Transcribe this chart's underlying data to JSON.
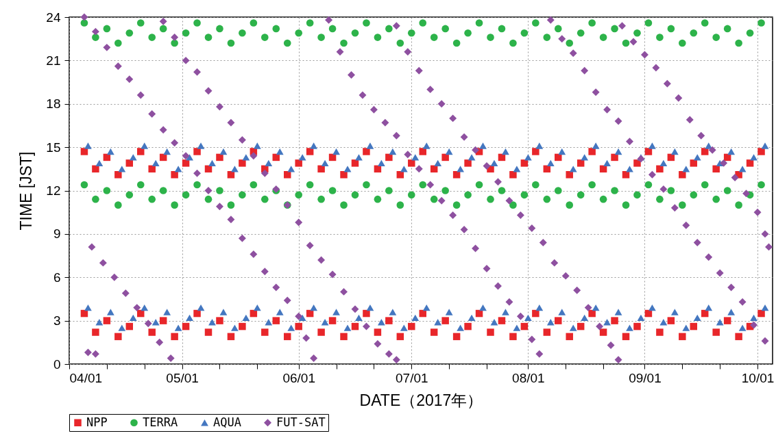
{
  "chart_data": {
    "type": "scatter",
    "xlabel": "DATE（2017年）",
    "ylabel": "TIME [JST]",
    "xlim": [
      "2017-04-01",
      "2017-10-05"
    ],
    "ylim": [
      0,
      24
    ],
    "xticks": [
      {
        "value": "2017-04-01",
        "label": "04/01"
      },
      {
        "value": "2017-04-11",
        "label": null
      },
      {
        "value": "2017-04-21",
        "label": null
      },
      {
        "value": "2017-05-01",
        "label": "05/01"
      },
      {
        "value": "2017-05-11",
        "label": null
      },
      {
        "value": "2017-05-21",
        "label": null
      },
      {
        "value": "2017-06-01",
        "label": "06/01"
      },
      {
        "value": "2017-06-11",
        "label": null
      },
      {
        "value": "2017-06-21",
        "label": null
      },
      {
        "value": "2017-07-01",
        "label": "07/01"
      },
      {
        "value": "2017-07-11",
        "label": null
      },
      {
        "value": "2017-07-21",
        "label": null
      },
      {
        "value": "2017-08-01",
        "label": "08/01"
      },
      {
        "value": "2017-08-11",
        "label": null
      },
      {
        "value": "2017-08-21",
        "label": null
      },
      {
        "value": "2017-09-01",
        "label": "09/01"
      },
      {
        "value": "2017-09-11",
        "label": null
      },
      {
        "value": "2017-09-21",
        "label": null
      },
      {
        "value": "2017-10-01",
        "label": "10/01"
      }
    ],
    "yticks": [
      0,
      3,
      6,
      9,
      12,
      15,
      18,
      21,
      24
    ],
    "grid": true,
    "legend": "bottom",
    "series": [
      {
        "name": "NPP",
        "color": "#e8262a",
        "marker": "square",
        "x": [
          "2017-04-05",
          "2017-04-08",
          "2017-04-11",
          "2017-04-14",
          "2017-04-17",
          "2017-04-20",
          "2017-04-23",
          "2017-04-26",
          "2017-04-29",
          "2017-05-02",
          "2017-05-05",
          "2017-05-08",
          "2017-05-11",
          "2017-05-14",
          "2017-05-17",
          "2017-05-20",
          "2017-05-23",
          "2017-05-26",
          "2017-05-29",
          "2017-06-01",
          "2017-06-04",
          "2017-06-07",
          "2017-06-10",
          "2017-06-13",
          "2017-06-16",
          "2017-06-19",
          "2017-06-22",
          "2017-06-25",
          "2017-06-28",
          "2017-07-01",
          "2017-07-04",
          "2017-07-07",
          "2017-07-10",
          "2017-07-13",
          "2017-07-16",
          "2017-07-19",
          "2017-07-22",
          "2017-07-25",
          "2017-07-28",
          "2017-07-31",
          "2017-08-03",
          "2017-08-06",
          "2017-08-09",
          "2017-08-12",
          "2017-08-15",
          "2017-08-18",
          "2017-08-21",
          "2017-08-24",
          "2017-08-27",
          "2017-08-30",
          "2017-09-02",
          "2017-09-05",
          "2017-09-08",
          "2017-09-11",
          "2017-09-14",
          "2017-09-17",
          "2017-09-20",
          "2017-09-23",
          "2017-09-26",
          "2017-09-29",
          "2017-10-02",
          "2017-04-05",
          "2017-04-08",
          "2017-04-11",
          "2017-04-14",
          "2017-04-17",
          "2017-04-20",
          "2017-04-23",
          "2017-04-26",
          "2017-04-29",
          "2017-05-02",
          "2017-05-05",
          "2017-05-08",
          "2017-05-11",
          "2017-05-14",
          "2017-05-17",
          "2017-05-20",
          "2017-05-23",
          "2017-05-26",
          "2017-05-29",
          "2017-06-01",
          "2017-06-04",
          "2017-06-07",
          "2017-06-10",
          "2017-06-13",
          "2017-06-16",
          "2017-06-19",
          "2017-06-22",
          "2017-06-25",
          "2017-06-28",
          "2017-07-01",
          "2017-07-04",
          "2017-07-07",
          "2017-07-10",
          "2017-07-13",
          "2017-07-16",
          "2017-07-19",
          "2017-07-22",
          "2017-07-25",
          "2017-07-28",
          "2017-07-31",
          "2017-08-03",
          "2017-08-06",
          "2017-08-09",
          "2017-08-12",
          "2017-08-15",
          "2017-08-18",
          "2017-08-21",
          "2017-08-24",
          "2017-08-27",
          "2017-08-30",
          "2017-09-02",
          "2017-09-05",
          "2017-09-08",
          "2017-09-11",
          "2017-09-14",
          "2017-09-17",
          "2017-09-20",
          "2017-09-23",
          "2017-09-26",
          "2017-09-29",
          "2017-10-02"
        ],
        "values": [
          14.7,
          13.5,
          14.3,
          13.1,
          13.9,
          14.7,
          13.5,
          14.3,
          13.1,
          13.9,
          14.7,
          13.5,
          14.3,
          13.1,
          13.9,
          14.7,
          13.5,
          14.3,
          13.1,
          13.9,
          14.7,
          13.5,
          14.3,
          13.1,
          13.9,
          14.7,
          13.5,
          14.3,
          13.1,
          13.9,
          14.7,
          13.5,
          14.3,
          13.1,
          13.9,
          14.7,
          13.5,
          14.3,
          13.1,
          13.9,
          14.7,
          13.5,
          14.3,
          13.1,
          13.9,
          14.7,
          13.5,
          14.3,
          13.1,
          13.9,
          14.7,
          13.5,
          14.3,
          13.1,
          13.9,
          14.7,
          13.5,
          14.3,
          13.1,
          13.9,
          14.7,
          3.5,
          2.2,
          3.0,
          1.9,
          2.6,
          3.5,
          2.2,
          3.0,
          1.9,
          2.6,
          3.5,
          2.2,
          3.0,
          1.9,
          2.6,
          3.5,
          2.2,
          3.0,
          1.9,
          2.6,
          3.5,
          2.2,
          3.0,
          1.9,
          2.6,
          3.5,
          2.2,
          3.0,
          1.9,
          2.6,
          3.5,
          2.2,
          3.0,
          1.9,
          2.6,
          3.5,
          2.2,
          3.0,
          1.9,
          2.6,
          3.5,
          2.2,
          3.0,
          1.9,
          2.6,
          3.5,
          2.2,
          3.0,
          1.9,
          2.6,
          3.5,
          2.2,
          3.0,
          1.9,
          2.6,
          3.5,
          2.2,
          3.0,
          1.9,
          2.6,
          3.5
        ]
      },
      {
        "name": "TERRA",
        "color": "#2db34a",
        "marker": "circle",
        "x": [
          "2017-04-05",
          "2017-04-08",
          "2017-04-11",
          "2017-04-14",
          "2017-04-17",
          "2017-04-20",
          "2017-04-23",
          "2017-04-26",
          "2017-04-29",
          "2017-05-02",
          "2017-05-05",
          "2017-05-08",
          "2017-05-11",
          "2017-05-14",
          "2017-05-17",
          "2017-05-20",
          "2017-05-23",
          "2017-05-26",
          "2017-05-29",
          "2017-06-01",
          "2017-06-04",
          "2017-06-07",
          "2017-06-10",
          "2017-06-13",
          "2017-06-16",
          "2017-06-19",
          "2017-06-22",
          "2017-06-25",
          "2017-06-28",
          "2017-07-01",
          "2017-07-04",
          "2017-07-07",
          "2017-07-10",
          "2017-07-13",
          "2017-07-16",
          "2017-07-19",
          "2017-07-22",
          "2017-07-25",
          "2017-07-28",
          "2017-07-31",
          "2017-08-03",
          "2017-08-06",
          "2017-08-09",
          "2017-08-12",
          "2017-08-15",
          "2017-08-18",
          "2017-08-21",
          "2017-08-24",
          "2017-08-27",
          "2017-08-30",
          "2017-09-02",
          "2017-09-05",
          "2017-09-08",
          "2017-09-11",
          "2017-09-14",
          "2017-09-17",
          "2017-09-20",
          "2017-09-23",
          "2017-09-26",
          "2017-09-29",
          "2017-10-02",
          "2017-04-05",
          "2017-04-08",
          "2017-04-11",
          "2017-04-14",
          "2017-04-17",
          "2017-04-20",
          "2017-04-23",
          "2017-04-26",
          "2017-04-29",
          "2017-05-02",
          "2017-05-05",
          "2017-05-08",
          "2017-05-11",
          "2017-05-14",
          "2017-05-17",
          "2017-05-20",
          "2017-05-23",
          "2017-05-26",
          "2017-05-29",
          "2017-06-01",
          "2017-06-04",
          "2017-06-07",
          "2017-06-10",
          "2017-06-13",
          "2017-06-16",
          "2017-06-19",
          "2017-06-22",
          "2017-06-25",
          "2017-06-28",
          "2017-07-01",
          "2017-07-04",
          "2017-07-07",
          "2017-07-10",
          "2017-07-13",
          "2017-07-16",
          "2017-07-19",
          "2017-07-22",
          "2017-07-25",
          "2017-07-28",
          "2017-07-31",
          "2017-08-03",
          "2017-08-06",
          "2017-08-09",
          "2017-08-12",
          "2017-08-15",
          "2017-08-18",
          "2017-08-21",
          "2017-08-24",
          "2017-08-27",
          "2017-08-30",
          "2017-09-02",
          "2017-09-05",
          "2017-09-08",
          "2017-09-11",
          "2017-09-14",
          "2017-09-17",
          "2017-09-20",
          "2017-09-23",
          "2017-09-26",
          "2017-09-29",
          "2017-10-02"
        ],
        "values": [
          23.6,
          22.6,
          23.2,
          22.2,
          22.9,
          23.6,
          22.6,
          23.2,
          22.2,
          22.9,
          23.6,
          22.6,
          23.2,
          22.2,
          22.9,
          23.6,
          22.6,
          23.2,
          22.2,
          22.9,
          23.6,
          22.6,
          23.2,
          22.2,
          22.9,
          23.6,
          22.6,
          23.2,
          22.2,
          22.9,
          23.6,
          22.6,
          23.2,
          22.2,
          22.9,
          23.6,
          22.6,
          23.2,
          22.2,
          22.9,
          23.6,
          22.6,
          23.2,
          22.2,
          22.9,
          23.6,
          22.6,
          23.2,
          22.2,
          22.9,
          23.6,
          22.6,
          23.2,
          22.2,
          22.9,
          23.6,
          22.6,
          23.2,
          22.2,
          22.9,
          23.6,
          12.4,
          11.4,
          12.0,
          11.0,
          11.7,
          12.4,
          11.4,
          12.0,
          11.0,
          11.7,
          12.4,
          11.4,
          12.0,
          11.0,
          11.7,
          12.4,
          11.4,
          12.0,
          11.0,
          11.7,
          12.4,
          11.4,
          12.0,
          11.0,
          11.7,
          12.4,
          11.4,
          12.0,
          11.0,
          11.7,
          12.4,
          11.4,
          12.0,
          11.0,
          11.7,
          12.4,
          11.4,
          12.0,
          11.0,
          11.7,
          12.4,
          11.4,
          12.0,
          11.0,
          11.7,
          12.4,
          11.4,
          12.0,
          11.0,
          11.7,
          12.4,
          11.4,
          12.0,
          11.0,
          11.7,
          12.4,
          11.4,
          12.0,
          11.0,
          11.7,
          12.4
        ]
      },
      {
        "name": "AQUA",
        "color": "#4477c0",
        "marker": "triangle",
        "x": [
          "2017-04-06",
          "2017-04-09",
          "2017-04-12",
          "2017-04-15",
          "2017-04-18",
          "2017-04-21",
          "2017-04-24",
          "2017-04-27",
          "2017-04-30",
          "2017-05-03",
          "2017-05-06",
          "2017-05-09",
          "2017-05-12",
          "2017-05-15",
          "2017-05-18",
          "2017-05-21",
          "2017-05-24",
          "2017-05-27",
          "2017-05-30",
          "2017-06-02",
          "2017-06-05",
          "2017-06-08",
          "2017-06-11",
          "2017-06-14",
          "2017-06-17",
          "2017-06-20",
          "2017-06-23",
          "2017-06-26",
          "2017-06-29",
          "2017-07-02",
          "2017-07-05",
          "2017-07-08",
          "2017-07-11",
          "2017-07-14",
          "2017-07-17",
          "2017-07-20",
          "2017-07-23",
          "2017-07-26",
          "2017-07-29",
          "2017-08-01",
          "2017-08-04",
          "2017-08-07",
          "2017-08-10",
          "2017-08-13",
          "2017-08-16",
          "2017-08-19",
          "2017-08-22",
          "2017-08-25",
          "2017-08-28",
          "2017-08-31",
          "2017-09-03",
          "2017-09-06",
          "2017-09-09",
          "2017-09-12",
          "2017-09-15",
          "2017-09-18",
          "2017-09-21",
          "2017-09-24",
          "2017-09-27",
          "2017-09-30",
          "2017-10-03",
          "2017-04-06",
          "2017-04-09",
          "2017-04-12",
          "2017-04-15",
          "2017-04-18",
          "2017-04-21",
          "2017-04-24",
          "2017-04-27",
          "2017-04-30",
          "2017-05-03",
          "2017-05-06",
          "2017-05-09",
          "2017-05-12",
          "2017-05-15",
          "2017-05-18",
          "2017-05-21",
          "2017-05-24",
          "2017-05-27",
          "2017-05-30",
          "2017-06-02",
          "2017-06-05",
          "2017-06-08",
          "2017-06-11",
          "2017-06-14",
          "2017-06-17",
          "2017-06-20",
          "2017-06-23",
          "2017-06-26",
          "2017-06-29",
          "2017-07-02",
          "2017-07-05",
          "2017-07-08",
          "2017-07-11",
          "2017-07-14",
          "2017-07-17",
          "2017-07-20",
          "2017-07-23",
          "2017-07-26",
          "2017-07-29",
          "2017-08-01",
          "2017-08-04",
          "2017-08-07",
          "2017-08-10",
          "2017-08-13",
          "2017-08-16",
          "2017-08-19",
          "2017-08-22",
          "2017-08-25",
          "2017-08-28",
          "2017-08-31",
          "2017-09-03",
          "2017-09-06",
          "2017-09-09",
          "2017-09-12",
          "2017-09-15",
          "2017-09-18",
          "2017-09-21",
          "2017-09-24",
          "2017-09-27",
          "2017-09-30",
          "2017-10-03"
        ],
        "values": [
          15.1,
          13.9,
          14.7,
          13.5,
          14.3,
          15.1,
          13.9,
          14.7,
          13.5,
          14.3,
          15.1,
          13.9,
          14.7,
          13.5,
          14.3,
          15.1,
          13.9,
          14.7,
          13.5,
          14.3,
          15.1,
          13.9,
          14.7,
          13.5,
          14.3,
          15.1,
          13.9,
          14.7,
          13.5,
          14.3,
          15.1,
          13.9,
          14.7,
          13.5,
          14.3,
          15.1,
          13.9,
          14.7,
          13.5,
          14.3,
          15.1,
          13.9,
          14.7,
          13.5,
          14.3,
          15.1,
          13.9,
          14.7,
          13.5,
          14.3,
          15.1,
          13.9,
          14.7,
          13.5,
          14.3,
          15.1,
          13.9,
          14.7,
          13.5,
          14.3,
          15.1,
          3.9,
          2.9,
          3.6,
          2.5,
          3.2,
          3.9,
          2.9,
          3.6,
          2.5,
          3.2,
          3.9,
          2.9,
          3.6,
          2.5,
          3.2,
          3.9,
          2.9,
          3.6,
          2.5,
          3.2,
          3.9,
          2.9,
          3.6,
          2.5,
          3.2,
          3.9,
          2.9,
          3.6,
          2.5,
          3.2,
          3.9,
          2.9,
          3.6,
          2.5,
          3.2,
          3.9,
          2.9,
          3.6,
          2.5,
          3.2,
          3.9,
          2.9,
          3.6,
          2.5,
          3.2,
          3.9,
          2.9,
          3.6,
          2.5,
          3.2,
          3.9,
          2.9,
          3.6,
          2.5,
          3.2,
          3.9,
          2.9,
          3.6,
          2.5,
          3.2,
          3.9
        ]
      },
      {
        "name": "FUT-SAT",
        "color": "#8e50a0",
        "marker": "diamond",
        "x": [
          "2017-04-06",
          "2017-04-08",
          "2017-04-07",
          "2017-04-10",
          "2017-04-13",
          "2017-04-16",
          "2017-04-19",
          "2017-04-22",
          "2017-04-25",
          "2017-04-28",
          "2017-04-05",
          "2017-04-08",
          "2017-04-11",
          "2017-04-14",
          "2017-04-17",
          "2017-04-20",
          "2017-04-23",
          "2017-04-26",
          "2017-04-29",
          "2017-05-02",
          "2017-05-05",
          "2017-05-08",
          "2017-05-11",
          "2017-05-14",
          "2017-05-17",
          "2017-05-20",
          "2017-05-23",
          "2017-05-26",
          "2017-05-29",
          "2017-06-01",
          "2017-06-03",
          "2017-06-05",
          "2017-04-26",
          "2017-04-29",
          "2017-05-02",
          "2017-05-05",
          "2017-05-08",
          "2017-05-11",
          "2017-05-14",
          "2017-05-17",
          "2017-05-20",
          "2017-05-23",
          "2017-05-26",
          "2017-05-29",
          "2017-06-01",
          "2017-06-04",
          "2017-06-07",
          "2017-06-10",
          "2017-06-13",
          "2017-06-16",
          "2017-06-19",
          "2017-06-22",
          "2017-06-25",
          "2017-06-27",
          "2017-06-09",
          "2017-06-12",
          "2017-06-15",
          "2017-06-18",
          "2017-06-21",
          "2017-06-24",
          "2017-06-27",
          "2017-06-30",
          "2017-07-03",
          "2017-07-06",
          "2017-07-09",
          "2017-07-12",
          "2017-07-15",
          "2017-07-18",
          "2017-07-21",
          "2017-07-24",
          "2017-07-27",
          "2017-07-30",
          "2017-08-02",
          "2017-08-04",
          "2017-06-27",
          "2017-06-30",
          "2017-07-03",
          "2017-07-06",
          "2017-07-09",
          "2017-07-12",
          "2017-07-15",
          "2017-07-18",
          "2017-07-21",
          "2017-07-24",
          "2017-07-27",
          "2017-07-30",
          "2017-08-02",
          "2017-08-05",
          "2017-08-08",
          "2017-08-11",
          "2017-08-14",
          "2017-08-17",
          "2017-08-20",
          "2017-08-23",
          "2017-08-25",
          "2017-08-07",
          "2017-08-10",
          "2017-08-13",
          "2017-08-16",
          "2017-08-19",
          "2017-08-22",
          "2017-08-25",
          "2017-08-28",
          "2017-08-31",
          "2017-09-03",
          "2017-09-06",
          "2017-09-09",
          "2017-09-12",
          "2017-09-15",
          "2017-09-18",
          "2017-09-21",
          "2017-09-24",
          "2017-09-27",
          "2017-09-30",
          "2017-10-03",
          "2017-08-26",
          "2017-08-29",
          "2017-09-01",
          "2017-09-04",
          "2017-09-07",
          "2017-09-10",
          "2017-09-13",
          "2017-09-16",
          "2017-09-19",
          "2017-09-22",
          "2017-09-25",
          "2017-09-28",
          "2017-10-01",
          "2017-10-03",
          "2017-10-04"
        ],
        "values": [
          0.8,
          0.7,
          8.1,
          7.0,
          6.0,
          4.9,
          3.9,
          2.8,
          1.5,
          0.4,
          24.0,
          23.0,
          21.9,
          20.6,
          19.7,
          18.6,
          17.3,
          16.2,
          15.3,
          14.4,
          13.2,
          12.0,
          10.9,
          10.0,
          8.7,
          7.6,
          6.4,
          5.3,
          4.4,
          3.3,
          1.8,
          0.4,
          23.7,
          22.6,
          21.0,
          20.2,
          18.9,
          17.8,
          16.7,
          15.5,
          14.4,
          13.2,
          12.1,
          11.0,
          9.8,
          8.2,
          7.2,
          6.2,
          5.0,
          3.8,
          2.6,
          1.4,
          0.7,
          0.3,
          23.8,
          21.6,
          20.0,
          18.6,
          17.6,
          16.7,
          15.8,
          14.5,
          13.5,
          12.4,
          11.3,
          10.3,
          9.3,
          8.0,
          6.6,
          5.4,
          4.3,
          3.3,
          1.7,
          0.7,
          23.4,
          21.6,
          20.3,
          19.0,
          18.0,
          17.0,
          15.7,
          14.8,
          13.7,
          12.6,
          11.3,
          10.3,
          9.4,
          8.4,
          7.0,
          6.1,
          5.1,
          3.9,
          2.6,
          1.3,
          0.3,
          23.8,
          22.5,
          21.5,
          20.3,
          18.8,
          17.6,
          16.8,
          15.4,
          14.2,
          13.1,
          12.1,
          10.8,
          9.6,
          8.4,
          7.4,
          6.3,
          5.3,
          4.3,
          2.7,
          1.6,
          23.4,
          22.3,
          21.4,
          20.5,
          19.4,
          18.4,
          16.9,
          15.8,
          14.8,
          13.9,
          12.9,
          11.8,
          10.5,
          9.0,
          8.1
        ]
      }
    ]
  }
}
